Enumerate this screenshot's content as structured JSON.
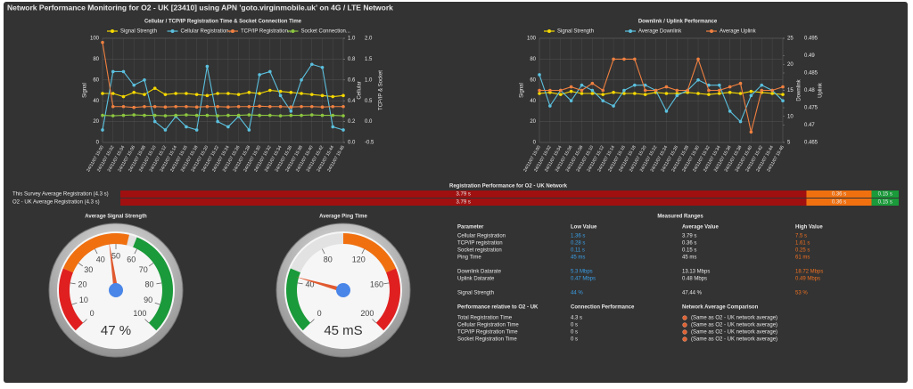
{
  "title": "Network Performance Monitoring for O2 - UK [23410] using APN 'goto.virginmobile.uk' on 4G / LTE Network",
  "chart_data": [
    {
      "type": "line",
      "title": "Cellular / TCP/IP Registration Time & Socket Connection Time",
      "categories": [
        "24/11/07 15:00",
        "24/11/07 15:02",
        "24/11/07 15:04",
        "24/11/07 15:06",
        "24/11/07 15:08",
        "24/11/07 15:10",
        "24/11/07 15:12",
        "24/11/07 15:14",
        "24/11/07 15:16",
        "24/11/07 15:18",
        "24/11/07 15:20",
        "24/11/07 15:22",
        "24/11/07 15:24",
        "24/11/07 15:26",
        "24/11/07 15:28",
        "24/11/07 15:30",
        "24/11/07 15:32",
        "24/11/07 15:34",
        "24/11/07 15:36",
        "24/11/07 15:38",
        "24/11/07 15:40",
        "24/11/07 15:42",
        "24/11/07 15:44",
        "24/11/07 15:46"
      ],
      "series": [
        {
          "name": "Signal Strength",
          "color": "#f5d800",
          "values": [
            47,
            47,
            44,
            48,
            46,
            52,
            46,
            47,
            47,
            46,
            45,
            47,
            47,
            46,
            48,
            47,
            50,
            49,
            48,
            47,
            46,
            45,
            44,
            45
          ]
        },
        {
          "name": "Cellular Registration...",
          "color": "#5bc0de",
          "axis": "y2",
          "values": [
            0.12,
            0.68,
            0.68,
            0.55,
            0.6,
            0.2,
            0.12,
            0.25,
            0.15,
            0.12,
            0.73,
            0.2,
            0.15,
            0.25,
            0.12,
            0.65,
            0.68,
            0.45,
            0.3,
            0.6,
            0.75,
            0.72,
            0.15,
            0.12
          ]
        },
        {
          "name": "TCP/IP Registration...",
          "color": "#f08040",
          "axis": "y3",
          "values": [
            1.9,
            0.36,
            0.36,
            0.34,
            0.36,
            0.36,
            0.35,
            0.36,
            0.36,
            0.35,
            0.36,
            0.36,
            0.35,
            0.36,
            0.36,
            0.37,
            0.36,
            0.36,
            0.35,
            0.36,
            0.36,
            0.35,
            0.36,
            0.36
          ]
        },
        {
          "name": "Socket Connection...",
          "color": "#8cc63f",
          "axis": "y3",
          "values": [
            0.15,
            0.14,
            0.15,
            0.16,
            0.15,
            0.15,
            0.14,
            0.15,
            0.16,
            0.15,
            0.15,
            0.14,
            0.15,
            0.15,
            0.16,
            0.15,
            0.15,
            0.14,
            0.15,
            0.15,
            0.16,
            0.15,
            0.15,
            0.14
          ]
        }
      ],
      "ylabel": "Signal",
      "ylim": [
        0,
        100
      ],
      "yticks": [
        0,
        20,
        40,
        60,
        80,
        100
      ],
      "y2label": "Cellular",
      "y2lim": [
        0,
        1
      ],
      "y2ticks": [
        {
          "value": 0,
          "label": "0.0"
        },
        0.2,
        0.4,
        0.6,
        0.8,
        {
          "value": 1,
          "label": "1.0"
        }
      ],
      "y3label": "TCP/IP & Socket",
      "y3lim": [
        -0.5,
        2
      ],
      "y3ticks": [
        -0.5,
        {
          "value": 0,
          "label": "0.0"
        },
        0.5,
        {
          "value": 1,
          "label": "1.0"
        },
        1.5,
        {
          "value": 2,
          "label": "2.0"
        }
      ],
      "grid": true
    },
    {
      "type": "line",
      "title": "Downlink / Uplink Performance",
      "categories": [
        "24/11/07 15:00",
        "24/11/07 15:02",
        "24/11/07 15:04",
        "24/11/07 15:06",
        "24/11/07 15:08",
        "24/11/07 15:10",
        "24/11/07 15:12",
        "24/11/07 15:14",
        "24/11/07 15:16",
        "24/11/07 15:18",
        "24/11/07 15:20",
        "24/11/07 15:22",
        "24/11/07 15:24",
        "24/11/07 15:26",
        "24/11/07 15:28",
        "24/11/07 15:30",
        "24/11/07 15:32",
        "24/11/07 15:34",
        "24/11/07 15:36",
        "24/11/07 15:38",
        "24/11/07 15:40",
        "24/11/07 15:42",
        "24/11/07 15:44",
        "24/11/07 15:46"
      ],
      "series": [
        {
          "name": "Signal Strength",
          "color": "#f5d800",
          "values": [
            47,
            48,
            46,
            49,
            47,
            47,
            46,
            48,
            47,
            47,
            46,
            48,
            47,
            47,
            48,
            47,
            46,
            47,
            48,
            47,
            49,
            48,
            47,
            46
          ]
        },
        {
          "name": "Average Downlink",
          "color": "#5bc0de",
          "axis": "y2",
          "values": [
            18,
            12,
            15,
            13,
            16,
            15,
            13,
            12,
            15,
            16,
            16,
            15,
            11,
            14,
            15,
            17,
            16,
            16,
            11,
            9,
            14,
            16,
            15,
            13
          ]
        },
        {
          "name": "Average Uplink",
          "color": "#f08040",
          "axis": "y3",
          "values": [
            0.48,
            0.48,
            0.48,
            0.481,
            0.48,
            0.482,
            0.48,
            0.489,
            0.489,
            0.489,
            0.48,
            0.48,
            0.481,
            0.48,
            0.48,
            0.489,
            0.48,
            0.48,
            0.481,
            0.482,
            0.468,
            0.48,
            0.48,
            0.481
          ]
        }
      ],
      "ylabel": "Signal",
      "ylim": [
        0,
        100
      ],
      "yticks": [
        0,
        20,
        40,
        60,
        80,
        100
      ],
      "y2label": "Downlink",
      "y2lim": [
        5,
        25
      ],
      "y2ticks": [
        5,
        10,
        15,
        20,
        25
      ],
      "y3label": "Uplink",
      "y3lim": [
        0.465,
        0.495
      ],
      "y3ticks": [
        0.465,
        0.47,
        0.475,
        0.48,
        0.485,
        0.49,
        0.495
      ],
      "grid": true
    },
    {
      "type": "stacked-bar",
      "title": "Registration Performance for O2 - UK Network",
      "categories": [
        "This Survey Average Registration (4.3 s)",
        "O2 - UK Average Registration (4.3 s)"
      ],
      "series": [
        {
          "color": "#a01010",
          "values": [
            3.79,
            3.79
          ],
          "value_labels": [
            "3.79 s",
            "3.79 s"
          ]
        },
        {
          "color": "#f07010",
          "values": [
            0.36,
            0.36
          ],
          "value_labels": [
            "0.36 s",
            "0.36 s"
          ]
        },
        {
          "color": "#1a9a3a",
          "values": [
            0.15,
            0.15
          ],
          "value_labels": [
            "0.15 s",
            "0.15 s"
          ]
        }
      ]
    },
    {
      "type": "gauge",
      "title": "Average Signal Strength",
      "value": 47,
      "value_label": "47 %",
      "lim": [
        0,
        100
      ],
      "ticks": [
        0,
        10,
        20,
        30,
        40,
        50,
        60,
        70,
        80,
        90,
        100
      ],
      "bands": [
        {
          "from": 0,
          "to": 25,
          "color": "#e02020"
        },
        {
          "from": 25,
          "to": 55,
          "color": "#f07010"
        },
        {
          "from": 58,
          "to": 100,
          "color": "#1a9a3a"
        }
      ]
    },
    {
      "type": "gauge",
      "title": "Average Ping Time",
      "value": 45,
      "value_label": "45 mS",
      "lim": [
        0,
        200
      ],
      "ticks": [
        0,
        40,
        80,
        120,
        160,
        200
      ],
      "bands": [
        {
          "from": 0,
          "to": 50,
          "color": "#1a9a3a"
        },
        {
          "from": 100,
          "to": 150,
          "color": "#f07010"
        },
        {
          "from": 150,
          "to": 200,
          "color": "#e02020"
        }
      ]
    }
  ],
  "measured_ranges": {
    "title": "Measured Ranges",
    "columns": [
      "Parameter",
      "Low Value",
      "Average Value",
      "High Value"
    ],
    "groups": [
      [
        [
          "Cellular Registration",
          "1.36 s",
          "3.79 s",
          "7.5 s"
        ],
        [
          "TCP/IP registration",
          "0.28 s",
          "0.36 s",
          "1.61 s"
        ],
        [
          "Socket registration",
          "0.11 s",
          "0.15 s",
          "0.25 s"
        ],
        [
          "Ping Time",
          "45 ms",
          "45 ms",
          "61 ms"
        ]
      ],
      [
        [
          "Downlink Datarate",
          "5.3 Mbps",
          "13.13 Mbps",
          "18.72 Mbps"
        ],
        [
          "Uplink Datarate",
          "0.47 Mbps",
          "0.48 Mbps",
          "0.49 Mbps"
        ]
      ],
      [
        [
          "Signal Strength",
          "44 %",
          "47.44 %",
          "53 %"
        ]
      ]
    ]
  },
  "comparison": {
    "columns": [
      "Performance relative to O2 - UK",
      "Connection Performance",
      "Network Average Comparison"
    ],
    "rows": [
      [
        "Total Registration Time",
        "4.3 s",
        "(Same as O2 - UK network average)"
      ],
      [
        "Cellular Registration Time",
        "0 s",
        "(Same as O2 - UK network average)"
      ],
      [
        "TCP/IP Registration Time",
        "0 s",
        "(Same as O2 - UK network average)"
      ],
      [
        "Socket Registration Time",
        "0 s",
        "(Same as O2 - UK network average)"
      ]
    ]
  }
}
